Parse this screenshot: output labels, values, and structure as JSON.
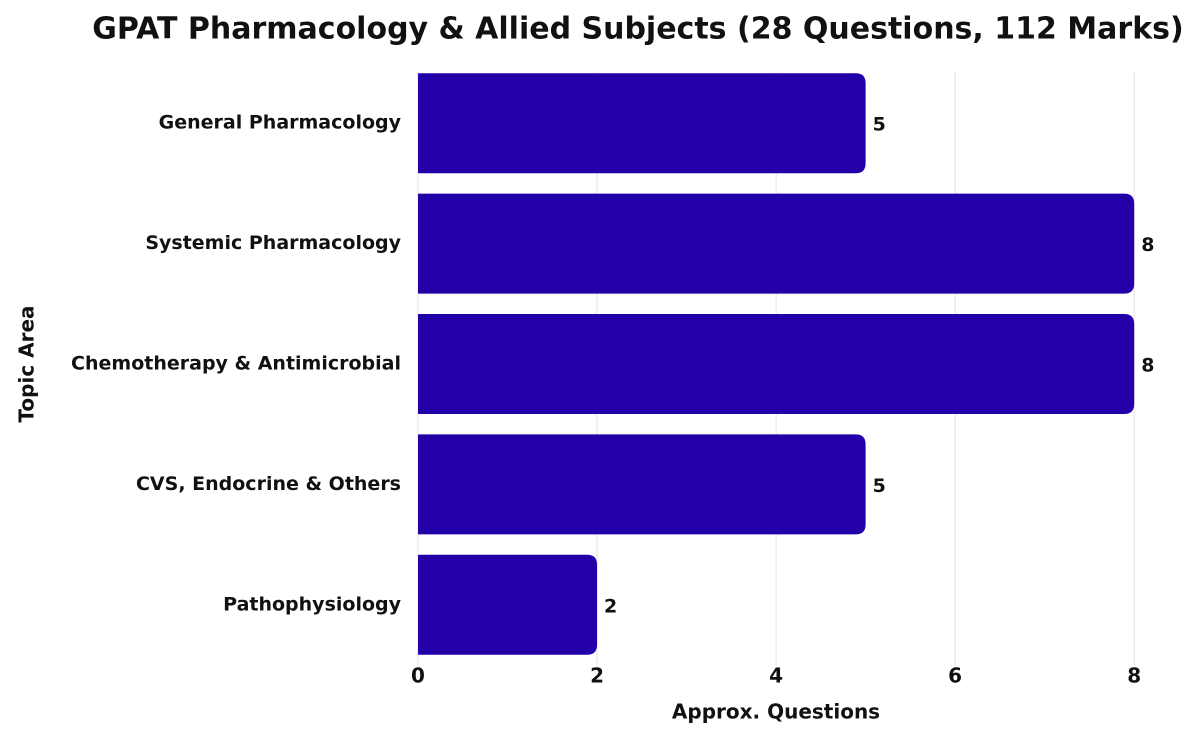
{
  "chart_data": {
    "type": "bar",
    "title": "GPAT Pharmacology & Allied Subjects (28 Questions, 112 Marks)",
    "x_label": "Approx. Questions",
    "y_label": "Topic Area",
    "categories": [
      "General Pharmacology",
      "Systemic Pharmacology",
      "Chemotherapy & Antimicrobial",
      "CVS, Endocrine & Others",
      "Pathophysiology"
    ],
    "values": [
      5,
      8,
      8,
      5,
      2
    ],
    "color": "#2400a8",
    "xlim": [
      0,
      8.4
    ],
    "xticks": [
      0,
      2,
      4,
      6,
      8
    ],
    "grid": true
  }
}
